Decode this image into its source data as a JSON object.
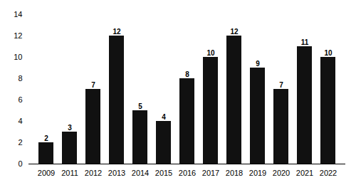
{
  "chart_data": {
    "type": "bar",
    "categories": [
      "2009",
      "2011",
      "2012",
      "2013",
      "2014",
      "2015",
      "2016",
      "2017",
      "2018",
      "2019",
      "2020",
      "2021",
      "2022"
    ],
    "values": [
      2,
      3,
      7,
      12,
      5,
      4,
      8,
      10,
      12,
      9,
      7,
      11,
      10
    ],
    "color": "#111111",
    "ylim": [
      0,
      14
    ],
    "yticks": [
      0,
      2,
      4,
      6,
      8,
      10,
      12,
      14
    ],
    "grid": false,
    "data_labels": true
  }
}
